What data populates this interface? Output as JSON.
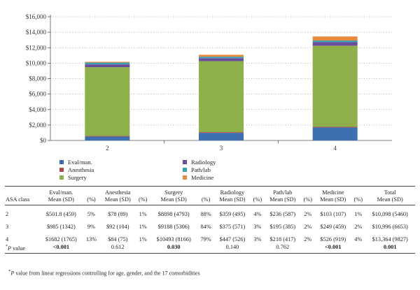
{
  "chart_data": {
    "type": "bar",
    "stacked": true,
    "categories": [
      "2",
      "3",
      "4"
    ],
    "ylim": [
      0,
      16000
    ],
    "yticks": [
      "$0",
      "$2,000",
      "$4,000",
      "$6,000",
      "$8,000",
      "$10,000",
      "$12,000",
      "$14,000",
      "$16,000"
    ],
    "grid": "dotted-horizontal",
    "legend_position": "bottom-left",
    "series": [
      {
        "name": "Eval/man.",
        "color": "#3e6fb0",
        "values": [
          501.8,
          985,
          1682
        ]
      },
      {
        "name": "Anesthesia",
        "color": "#b04a4a",
        "values": [
          78,
          92,
          84
        ]
      },
      {
        "name": "Surgery",
        "color": "#8db04a",
        "values": [
          8898,
          9188,
          10493
        ]
      },
      {
        "name": "Radiology",
        "color": "#6b4c9a",
        "values": [
          359,
          375,
          447
        ]
      },
      {
        "name": "Path/lab",
        "color": "#3a9fb5",
        "values": [
          236,
          195,
          218
        ]
      },
      {
        "name": "Medicine",
        "color": "#e88a3c",
        "values": [
          103,
          249,
          526
        ]
      }
    ]
  },
  "table": {
    "headers": [
      [
        "ASA class"
      ],
      [
        "Eval/man.",
        "Mean (SD)"
      ],
      [
        "(%)"
      ],
      [
        "Anesthesia",
        "Mean (SD)"
      ],
      [
        "(%)"
      ],
      [
        "Surgery",
        "Mean (SD)"
      ],
      [
        "(%)"
      ],
      [
        "Radiology",
        "Mean (SD)"
      ],
      [
        "(%)"
      ],
      [
        "Path/lab",
        "Mean (SD)"
      ],
      [
        "(%)"
      ],
      [
        "Medicine",
        "Mean (SD)"
      ],
      [
        "(%)"
      ],
      [
        "Total",
        "Mean (SD)"
      ]
    ],
    "rows": [
      [
        "2",
        "$501.8 (459)",
        "5%",
        "$78 (89)",
        "1%",
        "$8898 (4793)",
        "88%",
        "$359 (495)",
        "4%",
        "$236 (587)",
        "2%",
        "$103 (107)",
        "1%",
        "$10,098 (5460)"
      ],
      [
        "3",
        "$985 (1342)",
        "9%",
        "$92 (104)",
        "1%",
        "$9188 (5306)",
        "84%",
        "$375 (571)",
        "3%",
        "$195 (385)",
        "2%",
        "$249 (459)",
        "2%",
        "$10,996 (6653)"
      ],
      [
        "4",
        "$1682 (1765)",
        "13%",
        "$84 (75)",
        "1%",
        "$10493 (8166)",
        "79%",
        "$447 (526)",
        "3%",
        "$218 (417)",
        "2%",
        "$526 (919)",
        "4%",
        "$13,364 (9827)"
      ]
    ],
    "pvalue_label": "P value",
    "pvalue_label_mark": "*",
    "pvalues": [
      "<0.001",
      "",
      "0.612",
      "",
      "0.030",
      "",
      "0.140",
      "",
      "0.762",
      "",
      "<0.001",
      "",
      "0.001"
    ],
    "pvalues_bold": [
      true,
      false,
      false,
      false,
      true,
      false,
      false,
      false,
      false,
      false,
      true,
      false,
      true
    ]
  },
  "footnote": {
    "mark": "*",
    "label": "P",
    "text": " value from linear regressions controlling for age, gender, and the 17 comorbidities"
  }
}
